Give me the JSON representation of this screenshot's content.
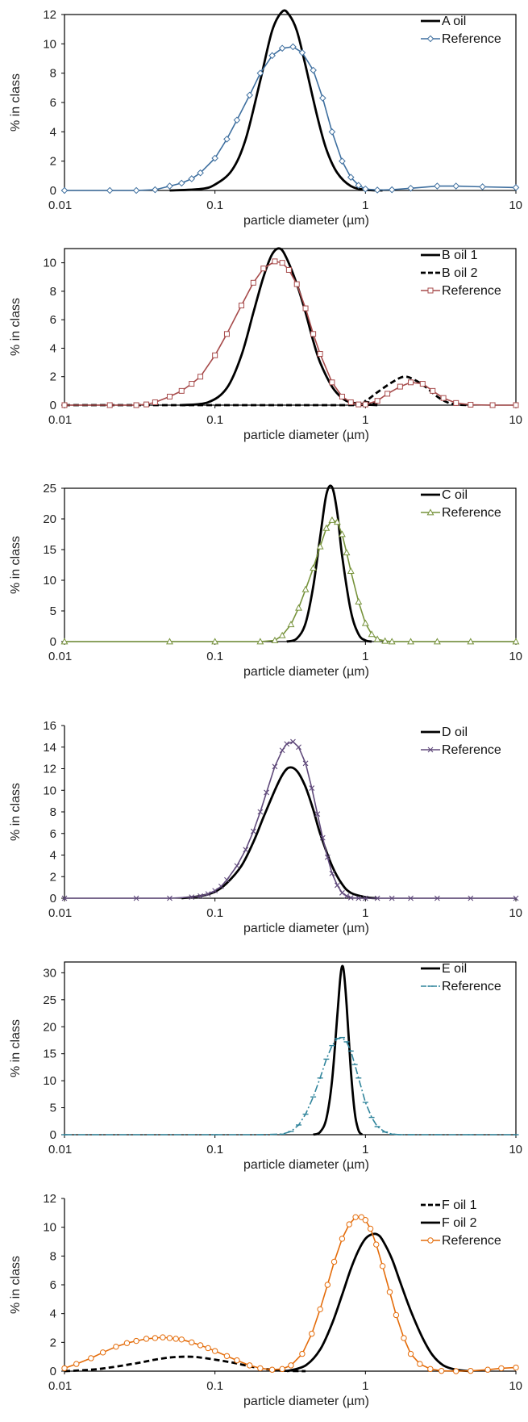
{
  "chart_data": [
    {
      "type": "line",
      "xscale": "log",
      "xlim": [
        0.01,
        10
      ],
      "ylim": [
        0,
        12
      ],
      "yticks": [
        0,
        2,
        4,
        6,
        8,
        10,
        12
      ],
      "xticks": [
        "0.01",
        "0.1",
        "1",
        "10"
      ],
      "xlabel": "particle diameter (µm)",
      "ylabel": "% in class",
      "legend": "top-right",
      "series": [
        {
          "name": "A oil",
          "color": "#000000",
          "style": "solid",
          "marker": "none",
          "x": [
            0.05,
            0.08,
            0.1,
            0.13,
            0.16,
            0.2,
            0.24,
            0.28,
            0.31,
            0.35,
            0.4,
            0.48,
            0.55,
            0.65,
            0.8,
            1.0,
            1.3
          ],
          "y": [
            0,
            0.1,
            0.4,
            1.4,
            3.5,
            7.5,
            10.9,
            12.2,
            12.0,
            10.9,
            8.5,
            5.0,
            2.8,
            1.2,
            0.3,
            0.05,
            0
          ]
        },
        {
          "name": "Reference",
          "color": "#3e6f9f",
          "style": "solid",
          "marker": "diamond",
          "x": [
            0.01,
            0.02,
            0.03,
            0.04,
            0.05,
            0.06,
            0.07,
            0.08,
            0.1,
            0.12,
            0.14,
            0.17,
            0.2,
            0.24,
            0.28,
            0.33,
            0.38,
            0.45,
            0.52,
            0.6,
            0.7,
            0.8,
            0.9,
            1.0,
            1.2,
            1.5,
            2.0,
            3.0,
            4.0,
            6.0,
            10.0
          ],
          "y": [
            0,
            0,
            0,
            0.05,
            0.3,
            0.5,
            0.8,
            1.2,
            2.2,
            3.5,
            4.8,
            6.5,
            8.0,
            9.2,
            9.7,
            9.8,
            9.4,
            8.2,
            6.3,
            4.0,
            2.0,
            0.9,
            0.35,
            0.1,
            0.03,
            0.05,
            0.15,
            0.3,
            0.3,
            0.25,
            0.2
          ]
        }
      ]
    },
    {
      "type": "line",
      "xscale": "log",
      "xlim": [
        0.01,
        10
      ],
      "ylim": [
        0,
        11
      ],
      "yticks": [
        0,
        2,
        4,
        6,
        8,
        10
      ],
      "xticks": [
        "0.01",
        "0.1",
        "1",
        "10"
      ],
      "xlabel": "particle diameter (µm)",
      "ylabel": "% in class",
      "legend": "top-right",
      "series": [
        {
          "name": "B oil 1",
          "color": "#000000",
          "style": "solid",
          "marker": "none",
          "x": [
            0.06,
            0.09,
            0.12,
            0.15,
            0.18,
            0.21,
            0.24,
            0.27,
            0.3,
            0.35,
            0.4,
            0.45,
            0.5,
            0.6,
            0.7,
            0.8,
            1.0,
            1.2
          ],
          "y": [
            0,
            0.2,
            1.2,
            3.5,
            6.5,
            9.0,
            10.6,
            11.0,
            10.3,
            8.5,
            6.5,
            4.5,
            3.0,
            1.3,
            0.5,
            0.2,
            0.05,
            0
          ]
        },
        {
          "name": "B oil 2",
          "color": "#000000",
          "style": "dash",
          "marker": "none",
          "x": [
            0.01,
            0.8,
            1.0,
            1.2,
            1.5,
            1.8,
            2.1,
            2.5,
            3.0,
            3.5,
            4.0,
            5.0
          ],
          "y": [
            0,
            0,
            0.3,
            0.9,
            1.6,
            2.0,
            1.8,
            1.3,
            0.6,
            0.2,
            0.05,
            0
          ]
        },
        {
          "name": "Reference",
          "color": "#a74b4b",
          "style": "solid",
          "marker": "square",
          "x": [
            0.01,
            0.02,
            0.03,
            0.035,
            0.04,
            0.05,
            0.06,
            0.07,
            0.08,
            0.1,
            0.12,
            0.15,
            0.18,
            0.21,
            0.25,
            0.28,
            0.31,
            0.35,
            0.4,
            0.45,
            0.5,
            0.6,
            0.7,
            0.8,
            0.9,
            1.0,
            1.2,
            1.4,
            1.7,
            2.0,
            2.4,
            2.8,
            3.3,
            4.0,
            5.0,
            7.0,
            10.0
          ],
          "y": [
            0,
            0,
            0,
            0.05,
            0.2,
            0.6,
            1.0,
            1.5,
            2.0,
            3.5,
            5.0,
            7.0,
            8.6,
            9.6,
            10.1,
            10.0,
            9.5,
            8.5,
            6.8,
            5.0,
            3.6,
            1.6,
            0.6,
            0.2,
            0.05,
            0.05,
            0.3,
            0.8,
            1.3,
            1.6,
            1.5,
            1.0,
            0.5,
            0.15,
            0.03,
            0,
            0
          ]
        }
      ]
    },
    {
      "type": "line",
      "xscale": "log",
      "xlim": [
        0.01,
        10
      ],
      "ylim": [
        0,
        25
      ],
      "yticks": [
        0,
        5,
        10,
        15,
        20,
        25
      ],
      "xticks": [
        "0.01",
        "0.1",
        "1",
        "10"
      ],
      "xlabel": "particle diameter (µm)",
      "ylabel": "% in class",
      "legend": "top-right",
      "series": [
        {
          "name": "C oil",
          "color": "#000000",
          "style": "solid",
          "marker": "none",
          "x": [
            0.3,
            0.35,
            0.4,
            0.45,
            0.5,
            0.55,
            0.6,
            0.65,
            0.7,
            0.8,
            0.9,
            1.0,
            1.1
          ],
          "y": [
            0,
            0.5,
            3.0,
            9.0,
            17.0,
            24.0,
            25.2,
            21.0,
            14.0,
            5.0,
            1.2,
            0.2,
            0
          ]
        },
        {
          "name": "Reference",
          "color": "#77933c",
          "style": "solid",
          "marker": "triangle",
          "x": [
            0.01,
            0.05,
            0.1,
            0.2,
            0.25,
            0.28,
            0.32,
            0.36,
            0.4,
            0.45,
            0.5,
            0.55,
            0.6,
            0.65,
            0.7,
            0.75,
            0.8,
            0.9,
            1.0,
            1.1,
            1.2,
            1.35,
            1.5,
            2.0,
            3.0,
            5.0,
            10.0
          ],
          "y": [
            0,
            0,
            0,
            0,
            0.2,
            1.0,
            2.8,
            5.5,
            8.5,
            12.0,
            15.5,
            18.5,
            19.8,
            19.5,
            17.5,
            14.5,
            11.5,
            6.5,
            3.0,
            1.2,
            0.4,
            0.1,
            0,
            0,
            0,
            0,
            0
          ]
        }
      ]
    },
    {
      "type": "line",
      "xscale": "log",
      "xlim": [
        0.01,
        10
      ],
      "ylim": [
        0,
        16
      ],
      "yticks": [
        0,
        2,
        4,
        6,
        8,
        10,
        12,
        14,
        16
      ],
      "xticks": [
        "0.01",
        "0.1",
        "1",
        "10"
      ],
      "xlabel": "particle diameter (µm)",
      "ylabel": "% in class",
      "legend": "top-right",
      "series": [
        {
          "name": "D oil",
          "color": "#000000",
          "style": "solid",
          "marker": "none",
          "x": [
            0.06,
            0.08,
            0.1,
            0.12,
            0.15,
            0.18,
            0.21,
            0.25,
            0.28,
            0.31,
            0.35,
            0.4,
            0.45,
            0.5,
            0.6,
            0.7,
            0.8,
            1.0,
            1.2
          ],
          "y": [
            0,
            0.2,
            0.6,
            1.4,
            3.0,
            5.2,
            7.5,
            10.0,
            11.4,
            12.1,
            11.8,
            10.3,
            8.2,
            6.0,
            3.0,
            1.3,
            0.5,
            0.1,
            0
          ]
        },
        {
          "name": "Reference",
          "color": "#604a7b",
          "style": "solid",
          "marker": "x",
          "x": [
            0.01,
            0.03,
            0.05,
            0.07,
            0.08,
            0.09,
            0.1,
            0.11,
            0.12,
            0.14,
            0.16,
            0.18,
            0.2,
            0.22,
            0.25,
            0.28,
            0.3,
            0.33,
            0.36,
            0.4,
            0.44,
            0.48,
            0.52,
            0.56,
            0.6,
            0.65,
            0.7,
            0.75,
            0.8,
            0.9,
            1.0,
            1.2,
            1.5,
            2.0,
            3.0,
            5.0,
            10.0
          ],
          "y": [
            0,
            0,
            0,
            0.1,
            0.2,
            0.4,
            0.7,
            1.1,
            1.7,
            3.0,
            4.5,
            6.2,
            8.0,
            9.8,
            12.2,
            13.7,
            14.3,
            14.5,
            14.0,
            12.5,
            10.2,
            7.8,
            5.6,
            3.8,
            2.3,
            1.2,
            0.5,
            0.2,
            0.05,
            0,
            0,
            0,
            0,
            0,
            0,
            0,
            0
          ]
        }
      ]
    },
    {
      "type": "line",
      "xscale": "log",
      "xlim": [
        0.01,
        10
      ],
      "ylim": [
        0,
        32
      ],
      "yticks": [
        0,
        5,
        10,
        15,
        20,
        25,
        30
      ],
      "xticks": [
        "0.01",
        "0.1",
        "1",
        "10"
      ],
      "xlabel": "particle diameter (µm)",
      "ylabel": "% in class",
      "legend": "top-right",
      "series": [
        {
          "name": "E oil",
          "color": "#000000",
          "style": "solid",
          "marker": "none",
          "x": [
            0.45,
            0.5,
            0.55,
            0.6,
            0.65,
            0.68,
            0.7,
            0.72,
            0.75,
            0.8,
            0.85,
            0.9,
            0.95
          ],
          "y": [
            0,
            0.5,
            3.0,
            10.0,
            22.0,
            29.0,
            31.2,
            30.0,
            24.0,
            12.0,
            4.0,
            0.8,
            0
          ]
        },
        {
          "name": "Reference",
          "color": "#31859c",
          "style": "dashdot",
          "marker": "dash",
          "x": [
            0.01,
            0.1,
            0.2,
            0.28,
            0.32,
            0.36,
            0.4,
            0.45,
            0.5,
            0.55,
            0.6,
            0.65,
            0.7,
            0.75,
            0.8,
            0.85,
            0.9,
            1.0,
            1.1,
            1.2,
            1.35,
            1.5,
            1.7,
            2.0,
            3.0,
            5.0,
            10.0
          ],
          "y": [
            0,
            0,
            0,
            0.1,
            0.6,
            1.8,
            3.8,
            7.0,
            10.5,
            14.0,
            16.5,
            17.8,
            18.0,
            17.2,
            15.5,
            13.0,
            10.5,
            6.0,
            3.2,
            1.5,
            0.5,
            0.1,
            0,
            0,
            0,
            0,
            0
          ]
        }
      ]
    },
    {
      "type": "line",
      "xscale": "log",
      "xlim": [
        0.01,
        10
      ],
      "ylim": [
        0,
        12
      ],
      "yticks": [
        0,
        2,
        4,
        6,
        8,
        10,
        12
      ],
      "xticks": [
        "0.01",
        "0.1",
        "1",
        "10"
      ],
      "xlabel": "particle diameter (µm)",
      "ylabel": "% in class",
      "legend": "top-right",
      "series": [
        {
          "name": "F oil 1",
          "color": "#000000",
          "style": "dash",
          "marker": "none",
          "x": [
            0.01,
            0.015,
            0.02,
            0.03,
            0.04,
            0.05,
            0.06,
            0.07,
            0.08,
            0.1,
            0.13,
            0.16,
            0.2,
            0.25,
            0.3,
            0.4
          ],
          "y": [
            0,
            0.1,
            0.25,
            0.55,
            0.8,
            0.95,
            1.0,
            1.0,
            0.95,
            0.8,
            0.6,
            0.4,
            0.2,
            0.08,
            0.02,
            0
          ]
        },
        {
          "name": "F oil 2",
          "color": "#000000",
          "style": "solid",
          "marker": "none",
          "x": [
            0.3,
            0.4,
            0.5,
            0.6,
            0.7,
            0.8,
            0.9,
            1.0,
            1.1,
            1.2,
            1.3,
            1.5,
            1.7,
            2.0,
            2.4,
            2.8,
            3.3,
            4.0,
            5.0
          ],
          "y": [
            0,
            0.4,
            1.5,
            3.3,
            5.3,
            7.1,
            8.4,
            9.2,
            9.5,
            9.5,
            9.1,
            7.8,
            6.2,
            4.2,
            2.3,
            1.1,
            0.4,
            0.1,
            0
          ]
        },
        {
          "name": "Reference",
          "color": "#e46c0a",
          "style": "solid",
          "marker": "circle",
          "x": [
            0.01,
            0.012,
            0.015,
            0.018,
            0.022,
            0.026,
            0.03,
            0.035,
            0.04,
            0.045,
            0.05,
            0.055,
            0.06,
            0.07,
            0.08,
            0.09,
            0.1,
            0.12,
            0.14,
            0.17,
            0.2,
            0.24,
            0.28,
            0.32,
            0.38,
            0.44,
            0.5,
            0.56,
            0.62,
            0.7,
            0.78,
            0.86,
            0.94,
            1.0,
            1.08,
            1.18,
            1.3,
            1.45,
            1.6,
            1.8,
            2.0,
            2.3,
            2.7,
            3.2,
            4.0,
            5.0,
            6.5,
            8.0,
            10.0
          ],
          "y": [
            0.2,
            0.5,
            0.9,
            1.3,
            1.7,
            1.95,
            2.1,
            2.25,
            2.3,
            2.35,
            2.3,
            2.25,
            2.2,
            2.0,
            1.8,
            1.6,
            1.4,
            1.05,
            0.75,
            0.4,
            0.2,
            0.1,
            0.15,
            0.4,
            1.2,
            2.6,
            4.3,
            6.0,
            7.6,
            9.2,
            10.2,
            10.7,
            10.7,
            10.5,
            9.9,
            8.8,
            7.3,
            5.5,
            3.9,
            2.3,
            1.2,
            0.5,
            0.15,
            0.02,
            0,
            0.02,
            0.1,
            0.2,
            0.25
          ]
        }
      ]
    }
  ]
}
